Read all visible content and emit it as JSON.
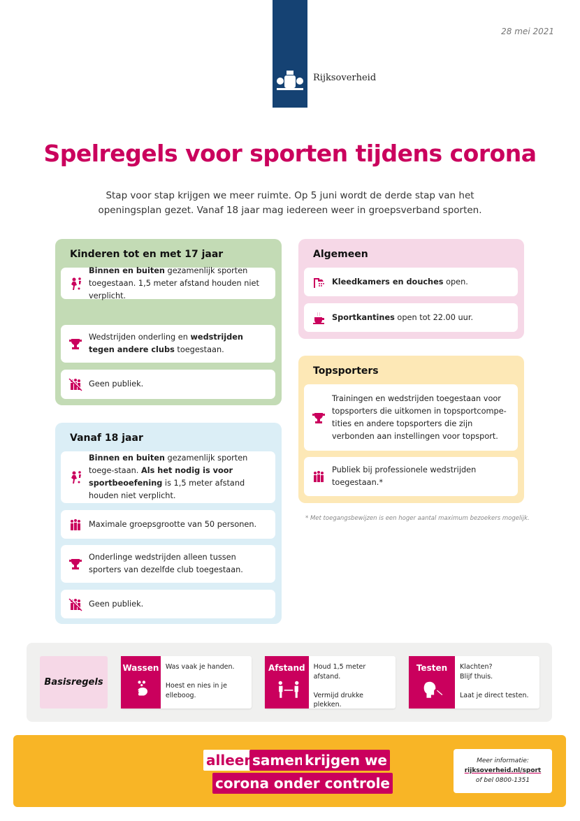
{
  "header": {
    "logo_text": "Rijksoverheid",
    "date": "28 mei 2021",
    "brand_color": "#154273",
    "accent_color": "#ca005d"
  },
  "title": "Spelregels voor sporten tijdens corona",
  "intro": [
    "Stap voor stap krijgen we meer ruimte. Op 5 juni wordt de derde stap van het",
    "openingsplan gezet. Vanaf 18 jaar mag iedereen weer in groepsverband sporten."
  ],
  "sections": [
    {
      "id": "kinderen",
      "title": "Kinderen tot en met 17 jaar",
      "color": "#c3dbb5",
      "items": [
        {
          "icon": "running-kids-icon",
          "parts": [
            {
              "t": "Binnen en buiten",
              "b": true
            },
            {
              "t": " gezamenlijk sporten toegestaan. 1,5 meter afstand houden niet verplicht."
            }
          ]
        },
        {
          "icon": "trophy-icon",
          "parts": [
            {
              "t": "Wedstrijden onderling en "
            },
            {
              "t": "wedstrijden tegen andere clubs",
              "b": true
            },
            {
              "t": " toegestaan."
            }
          ]
        },
        {
          "icon": "no-audience-icon",
          "parts": [
            {
              "t": "Geen publiek."
            }
          ]
        }
      ]
    },
    {
      "id": "vanaf18",
      "title": "Vanaf 18 jaar",
      "color": "#dbeef6",
      "items": [
        {
          "icon": "running-people-icon",
          "parts": [
            {
              "t": "Binnen en buiten",
              "b": true
            },
            {
              "t": " gezamenlijk sporten toege-staan. "
            },
            {
              "t": "Als het nodig is voor sportbeoefening",
              "b": true
            },
            {
              "t": " is 1,5 meter afstand houden niet verplicht."
            }
          ]
        },
        {
          "icon": "group-icon",
          "parts": [
            {
              "t": "Maximale groepsgrootte van 50 personen."
            }
          ]
        },
        {
          "icon": "trophy-icon",
          "parts": [
            {
              "t": "Onderlinge wedstrijden alleen tussen sporters van dezelfde club toegestaan."
            }
          ]
        },
        {
          "icon": "no-audience-icon",
          "parts": [
            {
              "t": "Geen publiek."
            }
          ]
        }
      ]
    },
    {
      "id": "algemeen",
      "title": "Algemeen",
      "color": "#f6d8e7",
      "items": [
        {
          "icon": "shower-icon",
          "parts": [
            {
              "t": "Kleedkamers en douches",
              "b": true
            },
            {
              "t": " open."
            }
          ]
        },
        {
          "icon": "coffee-cup-icon",
          "parts": [
            {
              "t": "Sportkantines",
              "b": true
            },
            {
              "t": " open tot 22.00 uur."
            }
          ]
        }
      ]
    },
    {
      "id": "topsporters",
      "title": "Topsporters",
      "color": "#fde8b6",
      "items": [
        {
          "icon": "trophy-icon",
          "parts": [
            {
              "t": "Trainingen en wedstrijden toegestaan voor topsporters die uitkomen in topsportcompe-tities en andere topsporters die zijn verbonden aan instellingen voor topsport."
            }
          ]
        },
        {
          "icon": "audience-icon",
          "parts": [
            {
              "t": "Publiek bij professionele wedstrijden toegestaan.*"
            }
          ]
        }
      ]
    }
  ],
  "footnote": "* Met toegangsbewijzen is een hoger aantal maximum bezoekers mogelijk.",
  "basisregels": {
    "label": "Basisregels",
    "rules": [
      {
        "label": "Wassen",
        "icon": "hand-washing-icon",
        "text": "Was vaak je handen.\n\nHoest en nies in je elleboog."
      },
      {
        "label": "Afstand",
        "icon": "distance-icon",
        "text": "Houd 1,5 meter afstand.\n\nVermijd drukke plekken."
      },
      {
        "label": "Testen",
        "icon": "test-swab-icon",
        "text": "Klachten?\nBlijf thuis.\n\nLaat je direct testen."
      }
    ]
  },
  "slogan": {
    "w1": "alleen",
    "w2": "samen",
    "w3": "krijgen we",
    "w4": "corona onder controle"
  },
  "info": {
    "line1": "Meer informatie:",
    "link": "rijksoverheid.nl/sport",
    "line3": "of bel 0800-1351"
  }
}
